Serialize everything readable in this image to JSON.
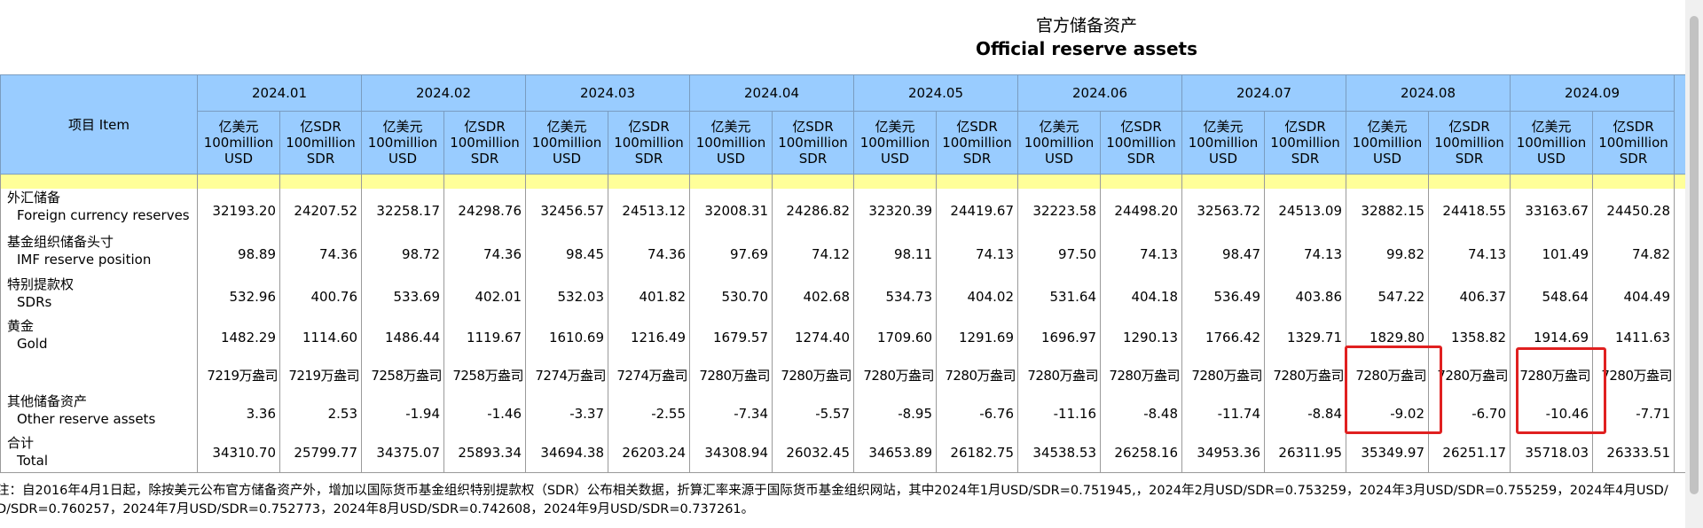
{
  "header": {
    "title_cn": "官方储备资产",
    "title_en": "Official reserve assets"
  },
  "table": {
    "item_header": "项目 Item",
    "months": [
      "2024.01",
      "2024.02",
      "2024.03",
      "2024.04",
      "2024.05",
      "2024.06",
      "2024.07",
      "2024.08",
      "2024.09"
    ],
    "units": {
      "usd": [
        "亿美元",
        "100million",
        "USD"
      ],
      "sdr": [
        "亿SDR",
        "100million",
        "SDR"
      ]
    },
    "rows": [
      {
        "cn": "外汇储备",
        "en": "Foreign currency reserves",
        "values": [
          "32193.20",
          "24207.52",
          "32258.17",
          "24298.76",
          "32456.57",
          "24513.12",
          "32008.31",
          "24286.82",
          "32320.39",
          "24419.67",
          "32223.58",
          "24498.20",
          "32563.72",
          "24513.09",
          "32882.15",
          "24418.55",
          "33163.67",
          "24450.28"
        ]
      },
      {
        "cn": "基金组织储备头寸",
        "en": "IMF reserve position",
        "values": [
          "98.89",
          "74.36",
          "98.72",
          "74.36",
          "98.45",
          "74.36",
          "97.69",
          "74.12",
          "98.11",
          "74.13",
          "97.50",
          "74.13",
          "98.47",
          "74.13",
          "99.82",
          "74.13",
          "101.49",
          "74.82"
        ]
      },
      {
        "cn": "特别提款权",
        "en": "SDRs",
        "values": [
          "532.96",
          "400.76",
          "533.69",
          "402.01",
          "532.03",
          "401.82",
          "530.70",
          "402.68",
          "534.73",
          "404.02",
          "531.64",
          "404.18",
          "536.49",
          "403.86",
          "547.22",
          "406.37",
          "548.64",
          "404.49"
        ]
      },
      {
        "cn": "黄金",
        "en": "Gold",
        "values": [
          "1482.29",
          "1114.60",
          "1486.44",
          "1119.67",
          "1610.69",
          "1216.49",
          "1679.57",
          "1274.40",
          "1709.60",
          "1291.69",
          "1696.97",
          "1290.13",
          "1766.42",
          "1329.71",
          "1829.80",
          "1358.82",
          "1914.69",
          "1411.63"
        ]
      },
      {
        "values": [
          "7219万盎司",
          "7219万盎司",
          "7258万盎司",
          "7258万盎司",
          "7274万盎司",
          "7274万盎司",
          "7280万盎司",
          "7280万盎司",
          "7280万盎司",
          "7280万盎司",
          "7280万盎司",
          "7280万盎司",
          "7280万盎司",
          "7280万盎司",
          "7280万盎司",
          "7280万盎司",
          "7280万盎司",
          "7280万盎司"
        ]
      },
      {
        "cn": "其他储备资产",
        "en": "Other reserve assets",
        "values": [
          "3.36",
          "2.53",
          "-1.94",
          "-1.46",
          "-3.37",
          "-2.55",
          "-7.34",
          "-5.57",
          "-8.95",
          "-6.76",
          "-11.16",
          "-8.48",
          "-11.74",
          "-8.84",
          "-9.02",
          "-6.70",
          "-10.46",
          "-7.71"
        ]
      },
      {
        "cn": "合计",
        "en": "Total",
        "values": [
          "34310.70",
          "25799.77",
          "34375.07",
          "25893.34",
          "34694.38",
          "26203.24",
          "34308.94",
          "26032.45",
          "34653.89",
          "26182.75",
          "34538.53",
          "26258.16",
          "34953.36",
          "26311.95",
          "35349.97",
          "26251.17",
          "35718.03",
          "26333.51"
        ]
      }
    ]
  },
  "note": [
    "注：自2016年4月1日起，除按美元公布官方储备资产外，增加以国际货币基金组织特别提款权（SDR）公布相关数据，折算汇率来源于国际货币基金组织网站，其中2024年1月USD/SDR=0.751945,，2024年2月USD/SDR=0.753259，2024年3月USD/SDR=0.755259，2024年4月USD/",
    "D/SDR=0.760257，2024年7月USD/SDR=0.752773，2024年8月USD/SDR=0.742608，2024年9月USD/SDR=0.737261。"
  ]
}
